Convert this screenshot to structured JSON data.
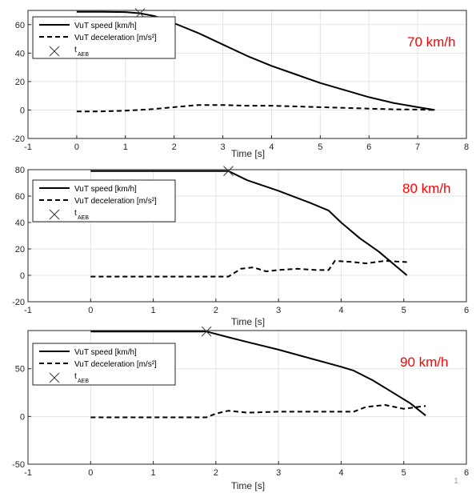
{
  "page_number": "1",
  "colors": {
    "annotation": "#ff0000",
    "grid": "#e3e3e3",
    "axis": "#262626",
    "line": "#000000"
  },
  "legend_entries": [
    {
      "key": "speed",
      "label": "VuT speed [km/h]"
    },
    {
      "key": "decel",
      "label": "VuT deceleration [m/s²]"
    },
    {
      "key": "aeb",
      "label": "t",
      "sub": "AEB"
    }
  ],
  "chart_data": [
    {
      "type": "line",
      "annotation": "70 km/h",
      "xlabel": "Time [s]",
      "ylabel": "",
      "xlim": [
        -1,
        8
      ],
      "ylim": [
        -20,
        70
      ],
      "xticks": [
        -1,
        0,
        1,
        2,
        3,
        4,
        5,
        6,
        7,
        8
      ],
      "yticks": [
        -20,
        0,
        20,
        40,
        60
      ],
      "grid": true,
      "legend_position": "top-left",
      "series": [
        {
          "name": "VuT speed [km/h]",
          "style": "solid",
          "x": [
            0,
            0.5,
            1.0,
            1.3,
            1.6,
            2.0,
            2.5,
            3.0,
            3.5,
            4.0,
            4.5,
            5.0,
            5.5,
            6.0,
            6.5,
            7.0,
            7.35
          ],
          "y": [
            69,
            69,
            68.8,
            68,
            66,
            61,
            54,
            46,
            38,
            31,
            25,
            19,
            14,
            9,
            5,
            2,
            0
          ]
        },
        {
          "name": "VuT deceleration [m/s²]",
          "style": "dashed",
          "x": [
            0,
            0.5,
            1.0,
            1.5,
            2.0,
            2.5,
            3.0,
            3.5,
            4.0,
            4.5,
            5.0,
            5.5,
            6.0,
            6.5,
            7.0,
            7.35
          ],
          "y": [
            -1,
            -1,
            -0.5,
            0.5,
            2,
            3.5,
            3.5,
            3,
            3,
            2.5,
            2,
            1.5,
            1,
            0.5,
            0.3,
            0
          ]
        },
        {
          "name": "t_AEB",
          "style": "marker",
          "x": [
            1.3
          ],
          "y": [
            68
          ]
        }
      ]
    },
    {
      "type": "line",
      "annotation": "80 km/h",
      "xlabel": "Time [s]",
      "ylabel": "",
      "xlim": [
        -1,
        6
      ],
      "ylim": [
        -20,
        80
      ],
      "xticks": [
        -1,
        0,
        1,
        2,
        3,
        4,
        5,
        6
      ],
      "yticks": [
        -20,
        0,
        20,
        40,
        60,
        80
      ],
      "grid": true,
      "legend_position": "top-left",
      "series": [
        {
          "name": "VuT speed [km/h]",
          "style": "solid",
          "x": [
            0,
            0.5,
            1.0,
            1.5,
            2.0,
            2.2,
            2.5,
            3.0,
            3.5,
            3.8,
            4.0,
            4.3,
            4.6,
            5.05
          ],
          "y": [
            79,
            79,
            79,
            79,
            79,
            79,
            72,
            64,
            55,
            49,
            40,
            28,
            18,
            0
          ]
        },
        {
          "name": "VuT deceleration [m/s²]",
          "style": "dashed",
          "x": [
            0,
            0.5,
            1.0,
            1.5,
            2.0,
            2.2,
            2.4,
            2.6,
            2.8,
            3.0,
            3.3,
            3.6,
            3.8,
            3.9,
            4.2,
            4.4,
            4.7,
            5.05
          ],
          "y": [
            -1,
            -1,
            -1,
            -1,
            -1,
            -1,
            5,
            6,
            3,
            4,
            5,
            4,
            4,
            11,
            10,
            9,
            11,
            10
          ]
        },
        {
          "name": "t_AEB",
          "style": "marker",
          "x": [
            2.2
          ],
          "y": [
            79
          ]
        }
      ]
    },
    {
      "type": "line",
      "annotation": "90 km/h",
      "xlabel": "Time [s]",
      "ylabel": "",
      "xlim": [
        -1,
        6
      ],
      "ylim": [
        -50,
        90
      ],
      "xticks": [
        -1,
        0,
        1,
        2,
        3,
        4,
        5,
        6
      ],
      "yticks": [
        -50,
        0,
        50
      ],
      "grid": true,
      "legend_position": "top-left",
      "series": [
        {
          "name": "VuT speed [km/h]",
          "style": "solid",
          "x": [
            0,
            0.5,
            1.0,
            1.5,
            1.85,
            2.2,
            2.5,
            3.0,
            3.5,
            4.0,
            4.2,
            4.5,
            4.8,
            5.1,
            5.35
          ],
          "y": [
            89,
            89,
            89,
            89,
            89,
            83,
            78,
            70,
            61,
            52,
            48,
            38,
            26,
            14,
            1
          ]
        },
        {
          "name": "VuT deceleration [m/s²]",
          "style": "dashed",
          "x": [
            0,
            0.5,
            1.0,
            1.5,
            1.85,
            2.0,
            2.2,
            2.5,
            3.0,
            3.5,
            4.0,
            4.2,
            4.4,
            4.7,
            5.0,
            5.35
          ],
          "y": [
            -1,
            -1,
            -1,
            -1,
            -1,
            3,
            6,
            4,
            5,
            5,
            5,
            5,
            10,
            12,
            8,
            11
          ]
        },
        {
          "name": "t_AEB",
          "style": "marker",
          "x": [
            1.85
          ],
          "y": [
            89
          ]
        }
      ]
    }
  ]
}
